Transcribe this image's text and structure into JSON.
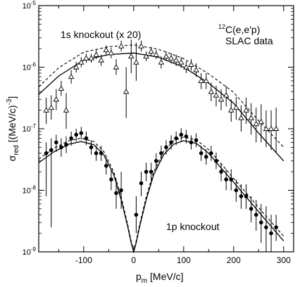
{
  "chart_data": {
    "type": "scatter",
    "xlabel_main": "p",
    "xlabel_sub": "m",
    "xlabel_rest": " [MeV/c]",
    "ylabel_main": "σ",
    "ylabel_sub": "red",
    "ylabel_rest": " [(MeV/c)",
    "ylabel_sup": "-3",
    "ylabel_end": "]",
    "xlim": [
      -190,
      320
    ],
    "ylim_log10": [
      -9,
      -5
    ],
    "y_scale": "log",
    "x_ticks": [
      -100,
      0,
      100,
      200,
      300
    ],
    "x_tick_labels": [
      "-100",
      "0",
      "100",
      "200",
      "300"
    ],
    "y_ticks_log10": [
      -9,
      -8,
      -7,
      -6,
      -5
    ],
    "y_tick_base": "10",
    "y_tick_exps": [
      "-9",
      "-8",
      "-7",
      "-6",
      "-5"
    ],
    "annotations": {
      "label_1s": "1s knockout (x 20)",
      "label_1p": "1p knockout",
      "reaction_sup": "12",
      "reaction": "C(e,e'p)",
      "source": "SLAC data"
    },
    "series": [
      {
        "marker": "open-triangle",
        "points": [
          {
            "x": -175,
            "y": 2e-07,
            "lo": 1.2e-07,
            "hi": 3.2e-07
          },
          {
            "x": -165,
            "y": 2.2e-07,
            "lo": 1.4e-07,
            "hi": 3.5e-07
          },
          {
            "x": -155,
            "y": 3e-07,
            "lo": 2e-07,
            "hi": 4.4e-07
          },
          {
            "x": -145,
            "y": 4.5e-07,
            "lo": 3.4e-07,
            "hi": 6e-07
          },
          {
            "x": -135,
            "y": 2e-07,
            "lo": 1e-07,
            "hi": 3.8e-07
          },
          {
            "x": -125,
            "y": 7e-07,
            "lo": 5.4e-07,
            "hi": 9e-07
          },
          {
            "x": -115,
            "y": 1e-06,
            "lo": 8.2e-07,
            "hi": 1.22e-06
          },
          {
            "x": -105,
            "y": 1.2e-06,
            "lo": 1e-06,
            "hi": 1.45e-06
          },
          {
            "x": -95,
            "y": 1.4e-06,
            "lo": 1.18e-06,
            "hi": 1.65e-06
          },
          {
            "x": -85,
            "y": 1.4e-06,
            "lo": 1.18e-06,
            "hi": 1.65e-06
          },
          {
            "x": -75,
            "y": 1.6e-06,
            "lo": 1.35e-06,
            "hi": 1.9e-06
          },
          {
            "x": -65,
            "y": 1.3e-06,
            "lo": 1.05e-06,
            "hi": 1.6e-06
          },
          {
            "x": -55,
            "y": 1.9e-06,
            "lo": 1.6e-06,
            "hi": 2.25e-06
          },
          {
            "x": -45,
            "y": 1.7e-06,
            "lo": 1.4e-06,
            "hi": 2.05e-06
          },
          {
            "x": -35,
            "y": 1e-06,
            "lo": 7.5e-07,
            "hi": 1.35e-06
          },
          {
            "x": -25,
            "y": 2.2e-06,
            "lo": 1.8e-06,
            "hi": 2.7e-06
          },
          {
            "x": -15,
            "y": 4e-07,
            "lo": 1.5e-07,
            "hi": 1e-06
          },
          {
            "x": -5,
            "y": 1.5e-06,
            "lo": 8e-07,
            "hi": 2.8e-06
          },
          {
            "x": 5,
            "y": 1.2e-06,
            "lo": 6e-07,
            "hi": 2.5e-06
          },
          {
            "x": 15,
            "y": 2.2e-06,
            "lo": 1.8e-06,
            "hi": 2.7e-06
          },
          {
            "x": 25,
            "y": 1.5e-06,
            "lo": 1.25e-06,
            "hi": 1.8e-06
          },
          {
            "x": 35,
            "y": 1.8e-06,
            "lo": 1.5e-06,
            "hi": 2.15e-06
          },
          {
            "x": 45,
            "y": 1.6e-06,
            "lo": 1.35e-06,
            "hi": 1.9e-06
          },
          {
            "x": 55,
            "y": 1.2e-06,
            "lo": 9.5e-07,
            "hi": 1.5e-06
          },
          {
            "x": 65,
            "y": 1.5e-06,
            "lo": 1.25e-06,
            "hi": 1.8e-06
          },
          {
            "x": 75,
            "y": 1.4e-06,
            "lo": 1.15e-06,
            "hi": 1.7e-06
          },
          {
            "x": 85,
            "y": 1.3e-06,
            "lo": 1.05e-06,
            "hi": 1.6e-06
          },
          {
            "x": 95,
            "y": 1.2e-06,
            "lo": 9.8e-07,
            "hi": 1.45e-06
          },
          {
            "x": 105,
            "y": 1e-06,
            "lo": 8e-07,
            "hi": 1.25e-06
          },
          {
            "x": 115,
            "y": 1.1e-06,
            "lo": 8.8e-07,
            "hi": 1.35e-06
          },
          {
            "x": 125,
            "y": 9e-07,
            "lo": 7e-07,
            "hi": 1.15e-06
          },
          {
            "x": 135,
            "y": 6e-07,
            "lo": 4.4e-07,
            "hi": 8e-07
          },
          {
            "x": 145,
            "y": 6e-07,
            "lo": 4.4e-07,
            "hi": 8e-07
          },
          {
            "x": 155,
            "y": 4e-07,
            "lo": 2.8e-07,
            "hi": 5.6e-07
          },
          {
            "x": 165,
            "y": 3.5e-07,
            "lo": 2.3e-07,
            "hi": 5e-07
          },
          {
            "x": 175,
            "y": 3e-07,
            "lo": 2e-07,
            "hi": 4.4e-07
          },
          {
            "x": 185,
            "y": 3.5e-07,
            "lo": 2.3e-07,
            "hi": 5e-07
          },
          {
            "x": 195,
            "y": 2e-07,
            "lo": 1.3e-07,
            "hi": 3e-07
          },
          {
            "x": 205,
            "y": 2.2e-07,
            "lo": 1.4e-07,
            "hi": 3.3e-07
          },
          {
            "x": 215,
            "y": 1.5e-07,
            "lo": 9e-08,
            "hi": 2.4e-07
          },
          {
            "x": 225,
            "y": 2e-07,
            "lo": 1.2e-07,
            "hi": 3.2e-07
          },
          {
            "x": 235,
            "y": 1.5e-07,
            "lo": 8e-08,
            "hi": 2.6e-07
          },
          {
            "x": 245,
            "y": 1.2e-07,
            "lo": 6e-08,
            "hi": 2.2e-07
          },
          {
            "x": 255,
            "y": 1.3e-07,
            "lo": 6e-08,
            "hi": 2.5e-07
          },
          {
            "x": 265,
            "y": 1e-07,
            "lo": 5e-08,
            "hi": 2e-07
          },
          {
            "x": 275,
            "y": 1e-07,
            "lo": 4.5e-08,
            "hi": 2e-07
          },
          {
            "x": 285,
            "y": 1e-07,
            "lo": 4e-08,
            "hi": 2.2e-07
          }
        ]
      },
      {
        "marker": "filled-circle",
        "points": [
          {
            "x": -175,
            "y": 4e-08,
            "lo": 8e-09,
            "hi": 6e-08
          },
          {
            "x": -165,
            "y": 4.5e-08,
            "lo": 2.5e-09,
            "hi": 7e-08
          },
          {
            "x": -155,
            "y": 6e-08,
            "lo": 4.2e-08,
            "hi": 8e-08
          },
          {
            "x": -145,
            "y": 5e-08,
            "lo": 3.5e-08,
            "hi": 7e-08
          },
          {
            "x": -135,
            "y": 5.5e-08,
            "lo": 4e-08,
            "hi": 7.5e-08
          },
          {
            "x": -125,
            "y": 7e-08,
            "lo": 5.3e-08,
            "hi": 9e-08
          },
          {
            "x": -115,
            "y": 8e-08,
            "lo": 6.2e-08,
            "hi": 1e-07
          },
          {
            "x": -105,
            "y": 8.5e-08,
            "lo": 6.7e-08,
            "hi": 1.07e-07
          },
          {
            "x": -95,
            "y": 7e-08,
            "lo": 5.4e-08,
            "hi": 9e-08
          },
          {
            "x": -85,
            "y": 5e-08,
            "lo": 3.8e-08,
            "hi": 6.5e-08
          },
          {
            "x": -75,
            "y": 4e-08,
            "lo": 3e-08,
            "hi": 5.3e-08
          },
          {
            "x": -65,
            "y": 4e-08,
            "lo": 3e-08,
            "hi": 5.3e-08
          },
          {
            "x": -55,
            "y": 2.5e-08,
            "lo": 1.8e-08,
            "hi": 3.4e-08
          },
          {
            "x": -45,
            "y": 1.5e-08,
            "lo": 1e-08,
            "hi": 2.2e-08
          },
          {
            "x": -35,
            "y": 9e-09,
            "lo": 5e-09,
            "hi": 1.5e-08
          },
          {
            "x": -25,
            "y": 1e-08,
            "lo": 5e-09,
            "hi": 2e-08
          },
          {
            "x": 5,
            "y": 4e-09,
            "lo": 2e-09,
            "hi": 8e-09
          },
          {
            "x": 15,
            "y": 1.3e-08,
            "lo": 8e-09,
            "hi": 2e-08
          },
          {
            "x": 25,
            "y": 2e-08,
            "lo": 1.4e-08,
            "hi": 2.8e-08
          },
          {
            "x": 35,
            "y": 2e-08,
            "lo": 1.4e-08,
            "hi": 2.8e-08
          },
          {
            "x": 45,
            "y": 3e-08,
            "lo": 2.2e-08,
            "hi": 4e-08
          },
          {
            "x": 55,
            "y": 4e-08,
            "lo": 3e-08,
            "hi": 5.3e-08
          },
          {
            "x": 65,
            "y": 5e-08,
            "lo": 3.8e-08,
            "hi": 6.5e-08
          },
          {
            "x": 75,
            "y": 6e-08,
            "lo": 4.6e-08,
            "hi": 7.8e-08
          },
          {
            "x": 85,
            "y": 7e-08,
            "lo": 5.4e-08,
            "hi": 9e-08
          },
          {
            "x": 95,
            "y": 8e-08,
            "lo": 6.2e-08,
            "hi": 1.02e-07
          },
          {
            "x": 105,
            "y": 7.5e-08,
            "lo": 5.8e-08,
            "hi": 9.6e-08
          },
          {
            "x": 115,
            "y": 6e-08,
            "lo": 4.6e-08,
            "hi": 7.8e-08
          },
          {
            "x": 125,
            "y": 6.5e-08,
            "lo": 5e-08,
            "hi": 8.4e-08
          },
          {
            "x": 135,
            "y": 4e-08,
            "lo": 3e-08,
            "hi": 5.3e-08
          },
          {
            "x": 145,
            "y": 3.5e-08,
            "lo": 2.6e-08,
            "hi": 4.7e-08
          },
          {
            "x": 155,
            "y": 4e-08,
            "lo": 3e-08,
            "hi": 5.3e-08
          },
          {
            "x": 165,
            "y": 3e-08,
            "lo": 2.2e-08,
            "hi": 4.1e-08
          },
          {
            "x": 175,
            "y": 2e-08,
            "lo": 1.4e-08,
            "hi": 2.8e-08
          },
          {
            "x": 185,
            "y": 1.5e-08,
            "lo": 1e-08,
            "hi": 2.2e-08
          },
          {
            "x": 195,
            "y": 1.5e-08,
            "lo": 1e-08,
            "hi": 2.2e-08
          },
          {
            "x": 205,
            "y": 1e-08,
            "lo": 6.5e-09,
            "hi": 1.5e-08
          },
          {
            "x": 215,
            "y": 8e-09,
            "lo": 5e-09,
            "hi": 1.25e-08
          },
          {
            "x": 225,
            "y": 8e-09,
            "lo": 5e-09,
            "hi": 1.25e-08
          },
          {
            "x": 235,
            "y": 5e-09,
            "lo": 3e-09,
            "hi": 8e-09
          },
          {
            "x": 245,
            "y": 4e-09,
            "lo": 2.2e-09,
            "hi": 7e-09
          },
          {
            "x": 255,
            "y": 3e-09,
            "lo": 1.4e-09,
            "hi": 6e-09
          },
          {
            "x": 265,
            "y": 2.5e-09,
            "lo": 1e-09,
            "hi": 5.5e-09
          },
          {
            "x": 275,
            "y": 2e-09,
            "lo": 1e-09,
            "hi": 4e-09
          },
          {
            "x": 285,
            "y": 2.5e-09,
            "lo": 1.5e-09,
            "hi": 4e-09
          }
        ]
      }
    ],
    "curves": [
      {
        "style": "solid",
        "points": [
          [
            -190,
            3.6e-07
          ],
          [
            -150,
            7.2e-07
          ],
          [
            -100,
            1.3e-06
          ],
          [
            -50,
            1.6e-06
          ],
          [
            0,
            1.7e-06
          ],
          [
            50,
            1.45e-06
          ],
          [
            100,
            1e-06
          ],
          [
            150,
            5.5e-07
          ],
          [
            200,
            2.6e-07
          ],
          [
            250,
            8.5e-08
          ],
          [
            300,
            3e-08
          ]
        ]
      },
      {
        "style": "dashed",
        "points": [
          [
            -190,
            4.8e-07
          ],
          [
            -150,
            9.8e-07
          ],
          [
            -100,
            1.75e-06
          ],
          [
            -50,
            2.15e-06
          ],
          [
            0,
            2.3e-06
          ],
          [
            50,
            1.95e-06
          ],
          [
            100,
            1.38e-06
          ],
          [
            150,
            7.8e-07
          ],
          [
            200,
            3.9e-07
          ],
          [
            250,
            1.35e-07
          ],
          [
            300,
            5e-08
          ]
        ]
      },
      {
        "style": "solid",
        "points": [
          [
            -190,
            2.8e-08
          ],
          [
            -160,
            4.2e-08
          ],
          [
            -130,
            5.6e-08
          ],
          [
            -105,
            6.2e-08
          ],
          [
            -80,
            5.5e-08
          ],
          [
            -60,
            3.8e-08
          ],
          [
            -40,
            1.8e-08
          ],
          [
            -25,
            7e-09
          ],
          [
            -12,
            2.6e-09
          ],
          [
            -5,
            1.4e-09
          ],
          [
            0,
            1e-09
          ],
          [
            5,
            1.4e-09
          ],
          [
            12,
            2.6e-09
          ],
          [
            25,
            7e-09
          ],
          [
            40,
            1.8e-08
          ],
          [
            60,
            3.8e-08
          ],
          [
            80,
            5.6e-08
          ],
          [
            100,
            6.4e-08
          ],
          [
            125,
            5.8e-08
          ],
          [
            150,
            4e-08
          ],
          [
            175,
            2.3e-08
          ],
          [
            200,
            1.35e-08
          ],
          [
            230,
            7e-09
          ],
          [
            260,
            3.6e-09
          ],
          [
            300,
            1.5e-09
          ]
        ]
      },
      {
        "style": "dashed",
        "points": [
          [
            -190,
            3.2e-08
          ],
          [
            -160,
            4.8e-08
          ],
          [
            -130,
            6.4e-08
          ],
          [
            -105,
            7e-08
          ],
          [
            -80,
            6.2e-08
          ],
          [
            -60,
            4.3e-08
          ],
          [
            -40,
            2e-08
          ],
          [
            -25,
            7.8e-09
          ],
          [
            -12,
            2.8e-09
          ],
          [
            -5,
            1.5e-09
          ],
          [
            0,
            1.05e-09
          ],
          [
            5,
            1.5e-09
          ],
          [
            12,
            2.8e-09
          ],
          [
            25,
            7.8e-09
          ],
          [
            40,
            2e-08
          ],
          [
            60,
            4.3e-08
          ],
          [
            80,
            6.4e-08
          ],
          [
            100,
            7.3e-08
          ],
          [
            125,
            6.6e-08
          ],
          [
            150,
            4.6e-08
          ],
          [
            175,
            2.7e-08
          ],
          [
            200,
            1.55e-08
          ],
          [
            230,
            8.2e-09
          ],
          [
            260,
            4.2e-09
          ],
          [
            300,
            1.8e-09
          ]
        ]
      }
    ]
  }
}
